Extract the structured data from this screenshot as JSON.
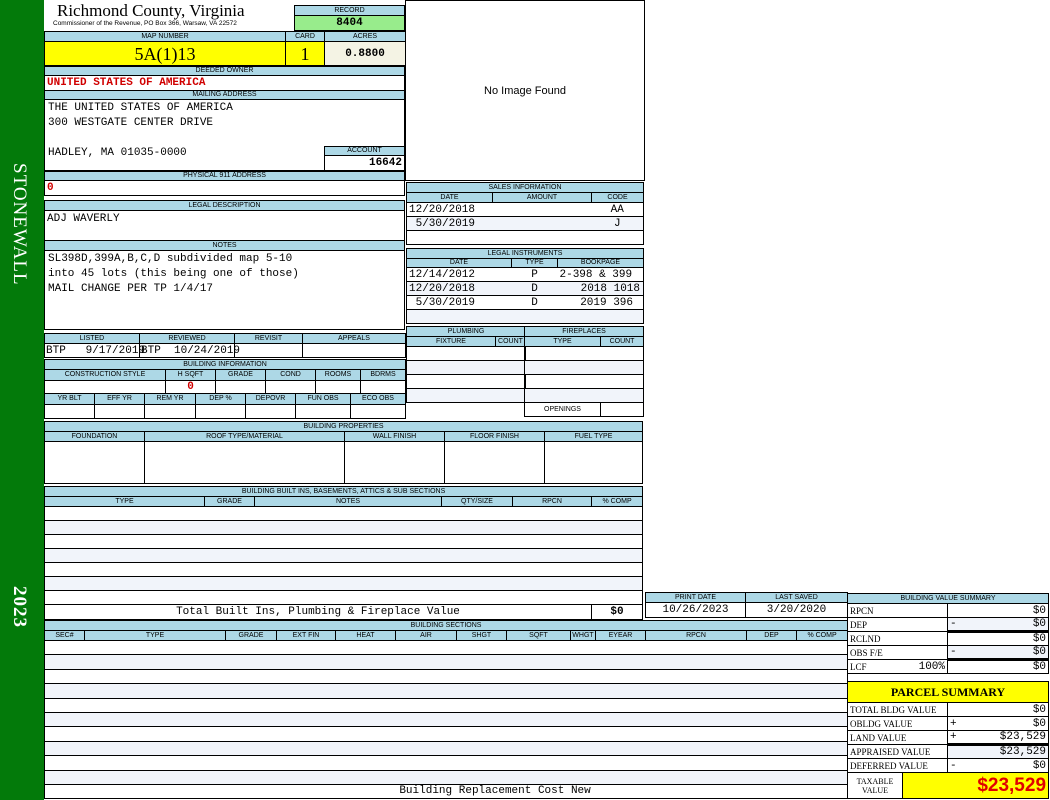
{
  "sidebar": {
    "district": "STONEWALL",
    "year": "2023",
    "color": "#037a0a"
  },
  "header": {
    "county": "Richmond County, Virginia",
    "subtitle": "Commissioner of the Revenue, PO Box 366, Warsaw, VA 22572"
  },
  "record": {
    "label": "RECORD",
    "value": "8404"
  },
  "parcel_ids": {
    "map_label": "MAP NUMBER",
    "map": "5A(1)13",
    "card_label": "CARD",
    "card": "1",
    "acres_label": "ACRES",
    "acres": "0.8800"
  },
  "owner": {
    "label": "DEEDED OWNER",
    "value": "UNITED STATES OF AMERICA"
  },
  "mailing": {
    "label": "MAILING ADDRESS",
    "lines": [
      "THE UNITED STATES OF AMERICA",
      "300 WESTGATE CENTER DRIVE",
      "HADLEY, MA 01035-0000"
    ]
  },
  "account": {
    "label": "ACCOUNT",
    "value": "16642"
  },
  "physical": {
    "label": "PHYSICAL 911 ADDRESS",
    "value": "0"
  },
  "legal": {
    "label": "LEGAL DESCRIPTION",
    "value": "ADJ WAVERLY"
  },
  "notes": {
    "label": "NOTES",
    "lines": [
      "SL398D,399A,B,C,D subdivided map 5-10",
      "into 45 lots (this being one of those)",
      "MAIL CHANGE PER TP 1/4/17"
    ]
  },
  "review": {
    "headers": [
      "LISTED",
      "REVIEWED",
      "REVISIT",
      "APPEALS"
    ],
    "values": [
      "BTP   9/17/2019",
      "BTP  10/24/2019",
      "",
      ""
    ]
  },
  "building_info": {
    "label": "BUILDING INFORMATION",
    "headers1": [
      "CONSTRUCTION STYLE",
      "H SQFT",
      "GRADE",
      "COND",
      "ROOMS",
      "BDRMS"
    ],
    "hsqft": "0",
    "headers2": [
      "YR BLT",
      "EFF YR",
      "REM YR",
      "DEP %",
      "DEPOVR",
      "FUN OBS",
      "ECO OBS"
    ]
  },
  "properties": {
    "label": "BUILDING PROPERTIES",
    "headers": [
      "FOUNDATION",
      "ROOF TYPE/MATERIAL",
      "WALL FINISH",
      "FLOOR FINISH",
      "FUEL TYPE"
    ]
  },
  "builtins": {
    "label": "BUILDING BUILT INS, BASEMENTS, ATTICS & SUB SECTIONS",
    "headers": [
      "TYPE",
      "GRADE",
      "NOTES",
      "QTY/SIZE",
      "RPCN",
      "% COMP"
    ],
    "total_label": "Total Built Ins, Plumbing & Fireplace Value",
    "total": "$0"
  },
  "image": {
    "placeholder": "No Image Found"
  },
  "sales": {
    "label": "SALES INFORMATION",
    "headers": [
      "DATE",
      "AMOUNT",
      "CODE"
    ],
    "rows": [
      [
        "12/20/2018",
        "",
        "AA"
      ],
      [
        " 5/30/2019",
        "",
        "J"
      ]
    ]
  },
  "instruments": {
    "label": "LEGAL INSTRUMENTS",
    "headers": [
      "DATE",
      "TYPE",
      "BOOKPAGE"
    ],
    "rows": [
      [
        "12/14/2012",
        "P",
        "2-398 & 399"
      ],
      [
        "12/20/2018",
        "D",
        "2018 1018"
      ],
      [
        " 5/30/2019",
        "D",
        "2019 396"
      ]
    ]
  },
  "plumbing": {
    "label": "PLUMBING",
    "headers": [
      "FIXTURE",
      "COUNT"
    ]
  },
  "fireplaces": {
    "label": "FIREPLACES",
    "headers": [
      "TYPE",
      "COUNT"
    ],
    "openings_label": "OPENINGS"
  },
  "dates": {
    "print_label": "PRINT DATE",
    "print": "10/26/2023",
    "saved_label": "LAST SAVED",
    "saved": "3/20/2020"
  },
  "sections": {
    "label": "BUILDING SECTIONS",
    "headers": [
      "SEC#",
      "TYPE",
      "GRADE",
      "EXT FIN",
      "HEAT",
      "AIR",
      "SHGT",
      "SQFT",
      "WHGT",
      "EYEAR",
      "RPCN",
      "DEP",
      "% COMP"
    ],
    "footer": "Building Replacement Cost New"
  },
  "value_summary": {
    "label": "BUILDING VALUE SUMMARY",
    "rows": [
      {
        "label": "RPCN",
        "op": "",
        "value": "$0"
      },
      {
        "label": "DEP",
        "op": "-",
        "value": "$0"
      },
      {
        "label": "RCLND",
        "op": "",
        "value": "$0"
      },
      {
        "label": "OBS F/E",
        "op": "-",
        "value": "$0"
      },
      {
        "label": "LCF",
        "pct": "100%",
        "op": "",
        "value": "$0"
      }
    ]
  },
  "parcel_summary": {
    "title": "PARCEL SUMMARY",
    "rows": [
      {
        "label": "TOTAL BLDG VALUE",
        "op": "",
        "value": "$0"
      },
      {
        "label": "OBLDG VALUE",
        "op": "+",
        "value": "$0"
      },
      {
        "label": "LAND VALUE",
        "op": "+",
        "value": "$23,529"
      },
      {
        "label": "APPRAISED VALUE",
        "op": "",
        "value": "$23,529"
      },
      {
        "label": "DEFERRED VALUE",
        "op": "-",
        "value": "$0"
      }
    ],
    "taxable_label": "TAXABLE VALUE",
    "taxable": "$23,529"
  }
}
